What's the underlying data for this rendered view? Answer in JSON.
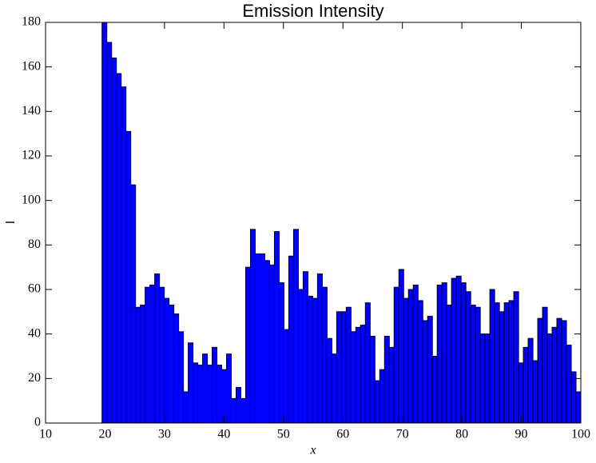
{
  "chart_data": {
    "type": "histogram",
    "title": "Emission Intensity",
    "x_label": "x",
    "y_label": "I",
    "bins": [
      19.5,
      20.305,
      21.11,
      21.915,
      22.72,
      23.525,
      24.33,
      25.135,
      25.94,
      26.745,
      27.55,
      28.355,
      29.16,
      29.965,
      30.77,
      31.575,
      32.38,
      33.185,
      33.99,
      34.795,
      35.6,
      36.405,
      37.21,
      38.015,
      38.82,
      39.625,
      40.43,
      41.235,
      42.04,
      42.845,
      43.65,
      44.455,
      45.26,
      46.065,
      46.87,
      47.675,
      48.48,
      49.285,
      50.09,
      50.895,
      51.7,
      52.505,
      53.31,
      54.115,
      54.92,
      55.725,
      56.53,
      57.335,
      58.14,
      58.945,
      59.75,
      60.555,
      61.36,
      62.165,
      62.97,
      63.775,
      64.58,
      65.385,
      66.19,
      66.995,
      67.8,
      68.605,
      69.41,
      70.215,
      71.02,
      71.825,
      72.63,
      73.435,
      74.24,
      75.045,
      75.85,
      76.655,
      77.46,
      78.265,
      79.07,
      79.875,
      80.68,
      81.485,
      82.29,
      83.095,
      83.9,
      84.705,
      85.51,
      86.315,
      87.12,
      87.925,
      88.73,
      89.535,
      90.34,
      91.145,
      91.95,
      92.755,
      93.56,
      94.365,
      95.17,
      95.975,
      96.78,
      97.585,
      98.39,
      99.195,
      100
    ],
    "values": [
      180,
      171,
      164,
      157,
      151,
      131,
      107,
      52,
      53,
      61,
      62,
      67,
      61,
      56,
      53,
      49,
      41,
      14,
      36,
      27,
      26,
      31,
      26,
      34,
      26,
      24,
      31,
      11,
      16,
      11,
      70,
      87,
      76,
      76,
      73,
      71,
      86,
      63,
      42,
      75,
      87,
      60,
      68,
      57,
      56,
      67,
      61,
      38,
      31,
      50,
      50,
      52,
      41,
      43,
      44,
      54,
      39,
      19,
      24,
      39,
      34,
      61,
      69,
      56,
      60,
      62,
      55,
      46,
      48,
      30,
      62,
      63,
      53,
      65,
      66,
      63,
      59,
      53,
      52,
      40,
      40,
      60,
      54,
      50,
      54,
      55,
      59,
      27,
      34,
      38,
      28,
      47,
      52,
      40,
      43,
      47,
      46,
      35,
      23,
      14
    ],
    "color": "#0000ff",
    "xlim": [
      10,
      100
    ],
    "xticks": [
      10,
      20,
      30,
      40,
      50,
      60,
      70,
      80,
      90,
      100
    ],
    "ylim": [
      0,
      180
    ],
    "yticks": [
      0,
      20,
      40,
      60,
      80,
      100,
      120,
      140,
      160,
      180
    ]
  }
}
